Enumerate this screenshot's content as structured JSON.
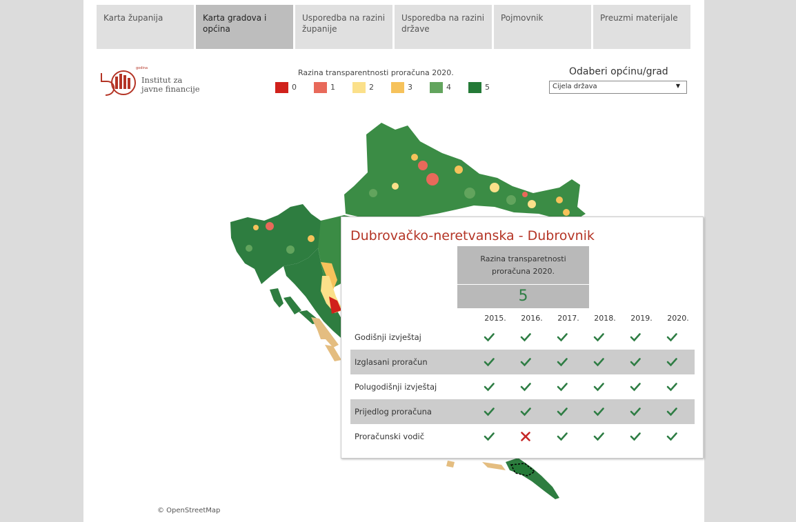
{
  "tabs": [
    {
      "label": "Karta županija",
      "active": false
    },
    {
      "label": "Karta gradova i općina",
      "active": true
    },
    {
      "label": "Usporedba na razini županije",
      "active": false
    },
    {
      "label": "Usporedba na razini države",
      "active": false
    },
    {
      "label": "Pojmovnik",
      "active": false
    },
    {
      "label": "Preuzmi materijale",
      "active": false
    }
  ],
  "logo": {
    "line1": "Institut za",
    "line2": "javne financije",
    "mark_text": "godina"
  },
  "legend": {
    "title": "Razina transparentnosti proračuna 2020.",
    "items": [
      {
        "label": "0",
        "color": "#d0211b"
      },
      {
        "label": "1",
        "color": "#e8695a"
      },
      {
        "label": "2",
        "color": "#fbe08a"
      },
      {
        "label": "3",
        "color": "#f6c25b"
      },
      {
        "label": "4",
        "color": "#62a45d"
      },
      {
        "label": "5",
        "color": "#247a37"
      }
    ]
  },
  "selector": {
    "label": "Odaberi općinu/grad",
    "value": "Cijela država"
  },
  "map": {
    "attribution": "© OpenStreetMap"
  },
  "tooltip": {
    "title": "Dubrovačko-neretvanska - Dubrovnik",
    "score_header_line1": "Razina transparetnosti",
    "score_header_line2": "proračuna  2020.",
    "score": "5",
    "years": [
      "2015.",
      "2016.",
      "2017.",
      "2018.",
      "2019.",
      "2020."
    ],
    "rows": [
      {
        "label": "Godišnji izvještaj",
        "marks": [
          "check",
          "check",
          "check",
          "check",
          "check",
          "check"
        ]
      },
      {
        "label": "Izglasani proračun",
        "marks": [
          "check",
          "check",
          "check",
          "check",
          "check",
          "check"
        ]
      },
      {
        "label": "Polugodišnji izvještaj",
        "marks": [
          "check",
          "check",
          "check",
          "check",
          "check",
          "check"
        ]
      },
      {
        "label": "Prijedlog proračuna",
        "marks": [
          "check",
          "check",
          "check",
          "check",
          "check",
          "check"
        ]
      },
      {
        "label": "Proračunski vodič",
        "marks": [
          "check",
          "cross",
          "check",
          "check",
          "check",
          "check"
        ]
      }
    ]
  }
}
